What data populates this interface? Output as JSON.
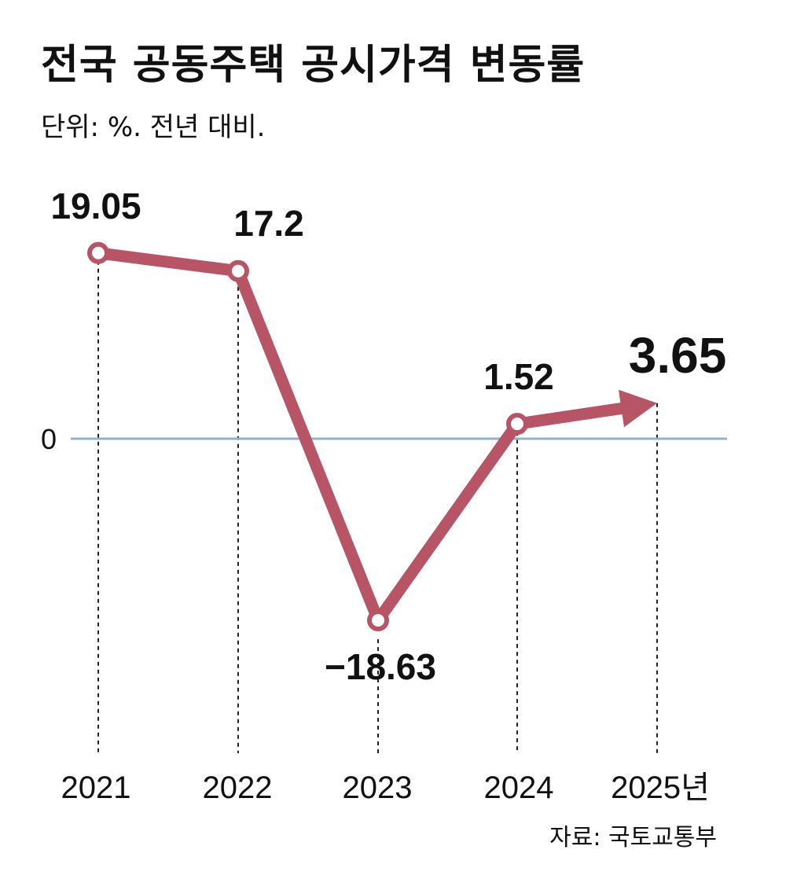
{
  "header": {
    "title": "전국 공동주택 공시가격 변동률",
    "subtitle": "단위: %. 전년 대비."
  },
  "footer": {
    "source": "자료: 국토교통부"
  },
  "colors": {
    "line": "#b75465",
    "zero_line": "#8fb2cf",
    "text": "#111111"
  },
  "chart_data": {
    "type": "line",
    "title": "전국 공동주택 공시가격 변동률",
    "subtitle": "단위: %. 전년 대비.",
    "categories": [
      "2021",
      "2022",
      "2023",
      "2024",
      "2025년"
    ],
    "values": [
      19.05,
      17.2,
      -18.63,
      1.52,
      3.65
    ],
    "data_labels": [
      "19.05",
      "17.2",
      "−18.63",
      "1.52",
      "3.65"
    ],
    "y_ticks": [
      "0"
    ],
    "y_zero_label": "0",
    "last_point_style": "arrow",
    "grid": false,
    "legend": "none"
  }
}
